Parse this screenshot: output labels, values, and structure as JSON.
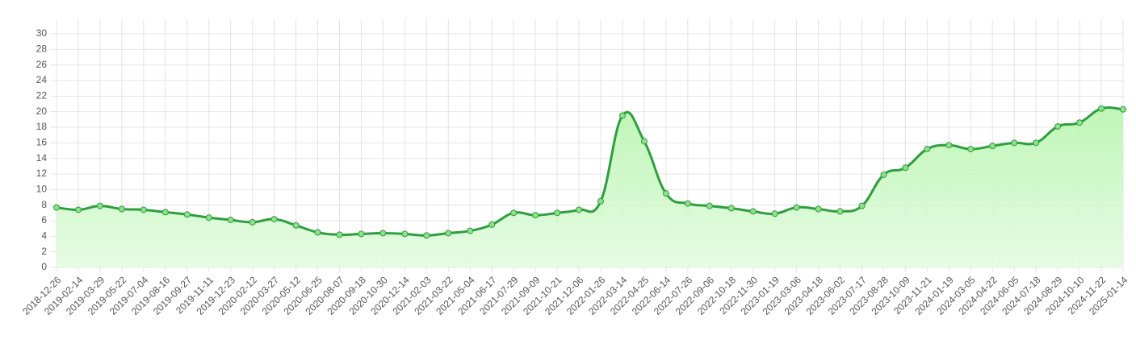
{
  "chart_data": {
    "type": "line",
    "categories": [
      "2018-12-26",
      "2019-02-14",
      "2019-03-29",
      "2019-05-22",
      "2019-07-04",
      "2019-08-16",
      "2019-09-27",
      "2019-11-11",
      "2019-12-23",
      "2020-02-12",
      "2020-03-27",
      "2020-05-12",
      "2020-06-25",
      "2020-08-07",
      "2020-09-18",
      "2020-10-30",
      "2020-12-14",
      "2021-02-03",
      "2021-03-22",
      "2021-05-04",
      "2021-06-17",
      "2021-07-29",
      "2021-09-09",
      "2021-10-21",
      "2021-12-06",
      "2022-01-26",
      "2022-03-14",
      "2022-04-25",
      "2022-06-14",
      "2022-07-26",
      "2022-09-06",
      "2022-10-18",
      "2022-11-30",
      "2023-01-19",
      "2023-03-06",
      "2023-04-18",
      "2023-06-02",
      "2023-07-17",
      "2023-08-28",
      "2023-10-09",
      "2023-11-21",
      "2024-01-19",
      "2024-03-05",
      "2024-04-22",
      "2024-06-05",
      "2024-07-18",
      "2024-08-29",
      "2024-10-10",
      "2024-11-22",
      "2025-01-14"
    ],
    "values": [
      7.7,
      7.4,
      7.9,
      7.5,
      7.4,
      7.1,
      6.8,
      6.4,
      6.1,
      5.8,
      6.2,
      5.4,
      4.5,
      4.2,
      4.3,
      4.4,
      4.3,
      4.1,
      4.4,
      4.7,
      5.5,
      7.0,
      6.7,
      7.0,
      7.4,
      8.5,
      19.5,
      16.2,
      9.5,
      8.2,
      7.9,
      7.6,
      7.2,
      6.9,
      7.7,
      7.5,
      7.2,
      7.9,
      11.9,
      12.8,
      15.2,
      15.7,
      15.2,
      15.6,
      16.0,
      16.0,
      18.1,
      18.6,
      20.4,
      20.3
    ],
    "color": "#2e9e3e",
    "fill": true,
    "ylim": [
      0,
      30
    ],
    "yticks": [
      0,
      2,
      4,
      6,
      8,
      10,
      12,
      14,
      16,
      18,
      20,
      22,
      24,
      26,
      28,
      30
    ],
    "grid": true
  }
}
